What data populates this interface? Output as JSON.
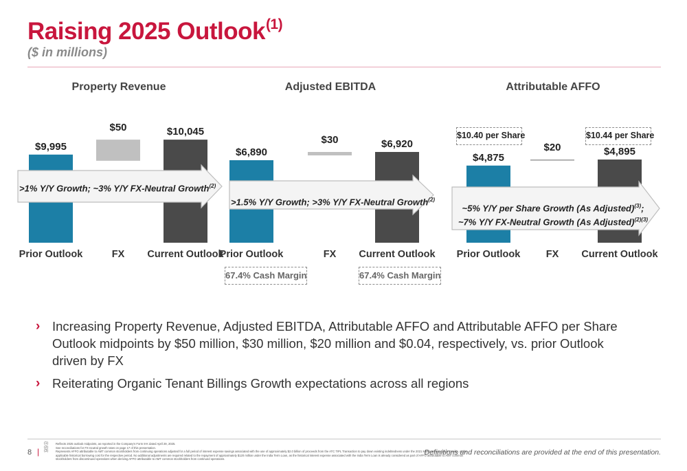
{
  "title": "Raising 2025 Outlook",
  "title_sup": "(1)",
  "subtitle": "($ in millions)",
  "colors": {
    "accent": "#c8163d",
    "prior_bar": "#1c7fa6",
    "current_bar": "#4a4a4a",
    "fx_bar": "#c0c0c0"
  },
  "chart_data": [
    {
      "type": "bar",
      "title": "Property Revenue",
      "categories": [
        "Prior Outlook",
        "FX",
        "Current Outlook"
      ],
      "values": [
        9995,
        50,
        10045
      ],
      "value_labels": [
        "$9,995",
        "$50",
        "$10,045"
      ],
      "growth_text": ">1% Y/Y Growth; ~3% Y/Y FX-Neutral Growth",
      "growth_sup": "(2)"
    },
    {
      "type": "bar",
      "title": "Adjusted EBITDA",
      "categories": [
        "Prior Outlook",
        "FX",
        "Current Outlook"
      ],
      "values": [
        6890,
        30,
        6920
      ],
      "value_labels": [
        "$6,890",
        "$30",
        "$6,920"
      ],
      "growth_text": ">1.5% Y/Y Growth; >3% Y/Y FX-Neutral Growth",
      "growth_sup": "(2)",
      "cash_margin_prior": "67.4% Cash Margin",
      "cash_margin_current": "67.4% Cash Margin"
    },
    {
      "type": "bar",
      "title": "Attributable AFFO",
      "categories": [
        "Prior Outlook",
        "FX",
        "Current Outlook"
      ],
      "values": [
        4875,
        20,
        4895
      ],
      "value_labels": [
        "$4,875",
        "$20",
        "$4,895"
      ],
      "growth_line1": "~5% Y/Y per Share Growth (As Adjusted)",
      "growth_sup1": "(3)",
      "growth_line1_end": ";",
      "growth_line2": "~7% Y/Y FX-Neutral Growth (As Adjusted)",
      "growth_sup2": "(2)(3)",
      "per_share_prior": "$10.40 per Share",
      "per_share_current": "$10.44 per Share"
    }
  ],
  "bullets": [
    "Increasing Property Revenue, Adjusted EBITDA, Attributable AFFO and Attributable AFFO per Share Outlook midpoints by $50 million, $30 million, $20 million and $0.04, respectively, vs. prior Outlook driven by FX",
    "Reiterating Organic Tenant Billings Growth expectations across all regions"
  ],
  "bullet_marker": "›",
  "footer": {
    "page_number": "8",
    "separator": "|",
    "footnote_marks": [
      "(1)",
      "(2)",
      "(3)"
    ],
    "footnotes": [
      "Reflects 2025 outlook midpoints, as reported in the Company's Form 8-K dated April 29, 2025.",
      "See reconciliations for FX-neutral growth rates on page 17 of this presentation.",
      "Represents AFFO attributable to AMT common stockholders from continuing operations adjusted for a full period of interest expense savings associated with the use of approximately $2.0 billion of proceeds from the ATC TIPL Transaction to pay down existing indebtedness under the 2021 Multicurrency Credit Facility, at the applicable historical borrowing cost for the respective period. No additional adjustments are required related to the repayment of approximately $120 million under the India Term Loan, as the historical interest expense associated with the India Term Loan is already considered as part of AFFO attributable to AMT common stockholders from discontinued operations when deriving AFFO attributable to AMT common stockholders from continued operations."
    ],
    "note": "Definitions and reconciliations are provided at the end of this presentation."
  }
}
